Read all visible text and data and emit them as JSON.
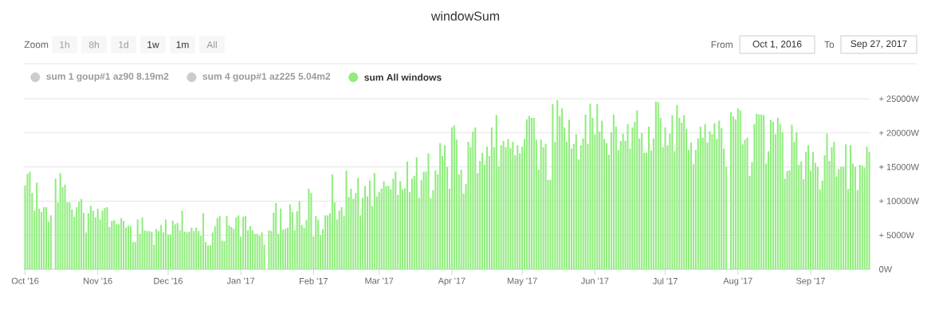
{
  "chart_data": {
    "type": "bar",
    "title": "windowSum",
    "x": [
      "2016-10-01",
      "2016-10-02",
      "2016-10-03",
      "2016-10-04",
      "2016-10-05",
      "2016-10-06",
      "2016-10-07",
      "2016-10-08",
      "2016-10-09",
      "2016-10-10",
      "2016-10-11",
      "2016-10-12",
      "2016-10-13",
      "2016-10-14",
      "2016-10-15",
      "2016-10-16",
      "2016-10-17",
      "2016-10-18",
      "2016-10-19",
      "2016-10-20",
      "2016-10-21",
      "2016-10-22",
      "2016-10-23",
      "2016-10-24",
      "2016-10-25",
      "2016-10-26",
      "2016-10-27",
      "2016-10-28",
      "2016-10-29",
      "2016-10-30",
      "2016-10-31",
      "2016-11-01",
      "2016-11-02",
      "2016-11-03",
      "2016-11-04",
      "2016-11-05",
      "2016-11-06",
      "2016-11-07",
      "2016-11-08",
      "2016-11-09",
      "2016-11-10",
      "2016-11-11",
      "2016-11-12",
      "2016-11-13",
      "2016-11-14",
      "2016-11-15",
      "2016-11-16",
      "2016-11-17",
      "2016-11-18",
      "2016-11-19",
      "2016-11-20",
      "2016-11-21",
      "2016-11-22",
      "2016-11-23",
      "2016-11-24",
      "2016-11-25",
      "2016-11-26",
      "2016-11-27",
      "2016-11-28",
      "2016-11-29",
      "2016-11-30",
      "2016-12-01",
      "2016-12-02",
      "2016-12-03",
      "2016-12-04",
      "2016-12-05",
      "2016-12-06",
      "2016-12-07",
      "2016-12-08",
      "2016-12-09",
      "2016-12-10",
      "2016-12-11",
      "2016-12-12",
      "2016-12-13",
      "2016-12-14",
      "2016-12-15",
      "2016-12-16",
      "2016-12-17",
      "2016-12-18",
      "2016-12-19",
      "2016-12-20",
      "2016-12-21",
      "2016-12-22",
      "2016-12-23",
      "2016-12-24",
      "2016-12-25",
      "2016-12-26",
      "2016-12-27",
      "2016-12-28",
      "2016-12-29",
      "2016-12-30",
      "2016-12-31",
      "2017-01-01",
      "2017-01-02",
      "2017-01-03",
      "2017-01-04",
      "2017-01-05",
      "2017-01-06",
      "2017-01-07",
      "2017-01-08",
      "2017-01-09",
      "2017-01-10",
      "2017-01-11",
      "2017-01-12",
      "2017-01-13",
      "2017-01-14",
      "2017-01-15",
      "2017-01-16",
      "2017-01-17",
      "2017-01-18",
      "2017-01-19",
      "2017-01-20",
      "2017-01-21",
      "2017-01-22",
      "2017-01-23",
      "2017-01-24",
      "2017-01-25",
      "2017-01-26",
      "2017-01-27",
      "2017-01-28",
      "2017-01-29",
      "2017-01-30",
      "2017-01-31",
      "2017-02-01",
      "2017-02-02",
      "2017-02-03",
      "2017-02-04",
      "2017-02-05",
      "2017-02-06",
      "2017-02-07",
      "2017-02-08",
      "2017-02-09",
      "2017-02-10",
      "2017-02-11",
      "2017-02-12",
      "2017-02-13",
      "2017-02-14",
      "2017-02-15",
      "2017-02-16",
      "2017-02-17",
      "2017-02-18",
      "2017-02-19",
      "2017-02-20",
      "2017-02-21",
      "2017-02-22",
      "2017-02-23",
      "2017-02-24",
      "2017-02-25",
      "2017-02-26",
      "2017-02-27",
      "2017-02-28",
      "2017-03-01",
      "2017-03-02",
      "2017-03-03",
      "2017-03-04",
      "2017-03-05",
      "2017-03-06",
      "2017-03-07",
      "2017-03-08",
      "2017-03-09",
      "2017-03-10",
      "2017-03-11",
      "2017-03-12",
      "2017-03-13",
      "2017-03-14",
      "2017-03-15",
      "2017-03-16",
      "2017-03-17",
      "2017-03-18",
      "2017-03-19",
      "2017-03-20",
      "2017-03-21",
      "2017-03-22",
      "2017-03-23",
      "2017-03-24",
      "2017-03-25",
      "2017-03-26",
      "2017-03-27",
      "2017-03-28",
      "2017-03-29",
      "2017-03-30",
      "2017-03-31",
      "2017-04-01",
      "2017-04-02",
      "2017-04-03",
      "2017-04-04",
      "2017-04-05",
      "2017-04-06",
      "2017-04-07",
      "2017-04-08",
      "2017-04-09",
      "2017-04-10",
      "2017-04-11",
      "2017-04-12",
      "2017-04-13",
      "2017-04-14",
      "2017-04-15",
      "2017-04-16",
      "2017-04-17",
      "2017-04-18",
      "2017-04-19",
      "2017-04-20",
      "2017-04-21",
      "2017-04-22",
      "2017-04-23",
      "2017-04-24",
      "2017-04-25",
      "2017-04-26",
      "2017-04-27",
      "2017-04-28",
      "2017-04-29",
      "2017-04-30",
      "2017-05-01",
      "2017-05-02",
      "2017-05-03",
      "2017-05-04",
      "2017-05-05",
      "2017-05-06",
      "2017-05-07",
      "2017-05-08",
      "2017-05-09",
      "2017-05-10",
      "2017-05-11",
      "2017-05-12",
      "2017-05-13",
      "2017-05-14",
      "2017-05-15",
      "2017-05-16",
      "2017-05-17",
      "2017-05-18",
      "2017-05-19",
      "2017-05-20",
      "2017-05-21",
      "2017-05-22",
      "2017-05-23",
      "2017-05-24",
      "2017-05-25",
      "2017-05-26",
      "2017-05-27",
      "2017-05-28",
      "2017-05-29",
      "2017-05-30",
      "2017-05-31",
      "2017-06-01",
      "2017-06-02",
      "2017-06-03",
      "2017-06-04",
      "2017-06-05",
      "2017-06-06",
      "2017-06-07",
      "2017-06-08",
      "2017-06-09",
      "2017-06-10",
      "2017-06-11",
      "2017-06-12",
      "2017-06-13",
      "2017-06-14",
      "2017-06-15",
      "2017-06-16",
      "2017-06-17",
      "2017-06-18",
      "2017-06-19",
      "2017-06-20",
      "2017-06-21",
      "2017-06-22",
      "2017-06-23",
      "2017-06-24",
      "2017-06-25",
      "2017-06-26",
      "2017-06-27",
      "2017-06-28",
      "2017-06-29",
      "2017-06-30",
      "2017-07-01",
      "2017-07-02",
      "2017-07-03",
      "2017-07-04",
      "2017-07-05",
      "2017-07-06",
      "2017-07-07",
      "2017-07-08",
      "2017-07-09",
      "2017-07-10",
      "2017-07-11",
      "2017-07-12",
      "2017-07-13",
      "2017-07-14",
      "2017-07-15",
      "2017-07-16",
      "2017-07-17",
      "2017-07-18",
      "2017-07-19",
      "2017-07-20",
      "2017-07-21",
      "2017-07-22",
      "2017-07-23",
      "2017-07-24",
      "2017-07-25",
      "2017-07-26",
      "2017-07-27",
      "2017-07-28",
      "2017-07-29",
      "2017-07-30",
      "2017-07-31",
      "2017-08-01",
      "2017-08-02",
      "2017-08-03",
      "2017-08-04",
      "2017-08-05",
      "2017-08-06",
      "2017-08-07",
      "2017-08-08",
      "2017-08-09",
      "2017-08-10",
      "2017-08-11",
      "2017-08-12",
      "2017-08-13",
      "2017-08-14",
      "2017-08-15",
      "2017-08-16",
      "2017-08-17",
      "2017-08-18",
      "2017-08-19",
      "2017-08-20",
      "2017-08-21",
      "2017-08-22",
      "2017-08-23",
      "2017-08-24",
      "2017-08-25",
      "2017-08-26",
      "2017-08-27",
      "2017-08-28",
      "2017-08-29",
      "2017-08-30",
      "2017-08-31",
      "2017-09-01",
      "2017-09-02",
      "2017-09-03",
      "2017-09-04",
      "2017-09-05",
      "2017-09-06",
      "2017-09-07",
      "2017-09-08",
      "2017-09-09",
      "2017-09-10",
      "2017-09-11",
      "2017-09-12",
      "2017-09-13",
      "2017-09-14",
      "2017-09-15",
      "2017-09-16",
      "2017-09-17",
      "2017-09-18",
      "2017-09-19",
      "2017-09-20",
      "2017-09-21",
      "2017-09-22",
      "2017-09-23",
      "2017-09-24",
      "2017-09-25",
      "2017-09-26"
    ],
    "series": [
      {
        "name": "sum 1 goup#1 az90 8.19m2",
        "color": "#cccccc",
        "values": [
          null,
          null,
          null,
          null,
          null,
          null,
          null,
          null,
          null,
          null,
          null,
          null,
          null,
          null,
          null,
          null,
          null,
          null,
          null,
          null,
          null,
          null,
          null,
          null,
          null,
          null,
          null,
          null,
          null,
          null,
          null,
          null,
          null,
          null,
          null,
          null,
          null,
          null,
          null,
          null,
          null,
          null,
          null,
          null,
          null,
          null,
          null,
          null,
          null,
          null,
          null,
          null,
          null,
          null,
          null,
          null,
          null,
          null,
          null,
          null,
          null,
          null,
          null,
          null,
          null,
          null,
          null,
          null,
          null,
          null,
          null,
          null,
          null,
          null,
          null,
          null,
          null,
          null,
          null,
          null,
          null,
          null,
          null,
          null,
          null,
          null,
          null,
          null,
          null,
          null,
          null,
          null,
          null,
          null,
          null,
          null,
          null,
          null,
          null,
          null,
          null,
          null,
          null,
          null,
          null,
          null,
          null,
          null,
          null,
          null,
          null,
          null,
          null,
          null,
          null,
          null,
          null,
          null,
          null,
          null,
          null,
          null,
          null,
          null,
          null,
          null,
          null,
          null,
          null,
          null,
          null,
          null,
          null,
          null,
          null,
          null,
          null,
          null,
          null,
          null,
          null,
          null,
          null,
          null,
          null,
          null,
          null,
          null,
          null,
          null,
          null,
          null,
          null,
          null,
          null,
          null,
          null,
          null,
          null,
          null,
          null,
          null,
          null,
          null,
          null,
          null,
          null,
          null,
          null,
          null,
          null,
          null,
          null,
          null,
          null,
          null,
          null,
          null,
          null,
          null,
          null,
          null,
          null,
          null,
          null,
          null,
          null,
          null,
          null,
          null,
          null,
          null,
          null,
          null,
          null,
          null,
          null,
          null,
          null,
          null,
          null,
          null,
          null,
          null,
          null,
          null,
          null,
          null,
          null,
          null,
          null,
          null,
          null,
          null,
          null,
          null,
          null,
          null,
          null,
          null,
          null,
          null,
          null,
          null,
          null,
          null,
          null,
          null,
          null,
          null,
          null,
          null,
          null,
          null,
          null,
          null,
          null,
          null,
          null,
          null,
          null,
          null,
          null,
          null,
          null,
          null,
          null,
          null,
          null,
          null,
          null,
          null,
          null,
          null,
          null,
          null,
          null,
          null,
          null,
          null,
          null,
          null,
          null,
          null,
          null,
          null,
          null,
          null,
          null,
          null,
          null,
          null,
          null,
          null,
          null,
          null,
          null,
          null,
          null,
          null,
          null,
          null,
          null,
          null,
          null,
          null,
          null,
          null,
          null,
          null,
          null,
          null,
          null,
          null,
          null,
          null,
          null,
          null,
          null,
          null,
          null,
          null,
          null,
          null,
          null,
          null,
          null,
          null,
          null,
          null,
          null,
          null,
          null,
          null,
          null,
          null,
          null,
          null,
          null,
          null,
          null,
          null,
          null,
          null,
          null,
          null,
          null,
          null,
          null,
          null,
          null,
          null,
          null,
          null,
          null,
          null,
          null,
          null,
          null,
          null,
          null,
          null,
          null,
          null,
          null,
          null,
          null,
          null,
          null,
          null,
          null,
          null,
          null,
          null,
          null,
          null,
          null,
          null,
          null,
          null,
          null
        ]
      },
      {
        "name": "sum 4 goup#1 az225 5.04m2",
        "color": "#cccccc",
        "values": [
          null,
          null,
          null,
          null,
          null,
          null,
          null,
          null,
          null,
          null,
          null,
          null,
          null,
          null,
          null,
          null,
          null,
          null,
          null,
          null,
          null,
          null,
          null,
          null,
          null,
          null,
          null,
          null,
          null,
          null,
          null,
          null,
          null,
          null,
          null,
          null,
          null,
          null,
          null,
          null,
          null,
          null,
          null,
          null,
          null,
          null,
          null,
          null,
          null,
          null,
          null,
          null,
          null,
          null,
          null,
          null,
          null,
          null,
          null,
          null,
          null,
          null,
          null,
          null,
          null,
          null,
          null,
          null,
          null,
          null,
          null,
          null,
          null,
          null,
          null,
          null,
          null,
          null,
          null,
          null,
          null,
          null,
          null,
          null,
          null,
          null,
          null,
          null,
          null,
          null,
          null,
          null,
          null,
          null,
          null,
          null,
          null,
          null,
          null,
          null,
          null,
          null,
          null,
          null,
          null,
          null,
          null,
          null,
          null,
          null,
          null,
          null,
          null,
          null,
          null,
          null,
          null,
          null,
          null,
          null,
          null,
          null,
          null,
          null,
          null,
          null,
          null,
          null,
          null,
          null,
          null,
          null,
          null,
          null,
          null,
          null,
          null,
          null,
          null,
          null,
          null,
          null,
          null,
          null,
          null,
          null,
          null,
          null,
          null,
          null,
          null,
          null,
          null,
          null,
          null,
          null,
          null,
          null,
          null,
          null,
          null,
          null,
          null,
          null,
          null,
          null,
          null,
          null,
          null,
          null,
          null,
          null,
          null,
          null,
          null,
          null,
          null,
          null,
          null,
          null,
          null,
          null,
          null,
          null,
          null,
          null,
          null,
          null,
          null,
          null,
          null,
          null,
          null,
          null,
          null,
          null,
          null,
          null,
          null,
          null,
          null,
          null,
          null,
          null,
          null,
          null,
          null,
          null,
          null,
          null,
          null,
          null,
          null,
          null,
          null,
          null,
          null,
          null,
          null,
          null,
          null,
          null,
          null,
          null,
          null,
          null,
          null,
          null,
          null,
          null,
          null,
          null,
          null,
          null,
          null,
          null,
          null,
          null,
          null,
          null,
          null,
          null,
          null,
          null,
          null,
          null,
          null,
          null,
          null,
          null,
          null,
          null,
          null,
          null,
          null,
          null,
          null,
          null,
          null,
          null,
          null,
          null,
          null,
          null,
          null,
          null,
          null,
          null,
          null,
          null,
          null,
          null,
          null,
          null,
          null,
          null,
          null,
          null,
          null,
          null,
          null,
          null,
          null,
          null,
          null,
          null,
          null,
          null,
          null,
          null,
          null,
          null,
          null,
          null,
          null,
          null,
          null,
          null,
          null,
          null,
          null,
          null,
          null,
          null,
          null,
          null,
          null,
          null,
          null,
          null,
          null,
          null,
          null,
          null,
          null,
          null,
          null,
          null,
          null,
          null,
          null,
          null,
          null,
          null,
          null,
          null,
          null,
          null,
          null,
          null,
          null,
          null,
          null,
          null,
          null,
          null,
          null,
          null,
          null,
          null,
          null,
          null,
          null,
          null,
          null,
          null,
          null,
          null,
          null,
          null,
          null,
          null,
          null,
          null,
          null,
          null,
          null,
          null,
          null,
          null,
          null
        ]
      },
      {
        "name": "sum All windows",
        "color": "#90ed7d",
        "values": [
          12300,
          14000,
          14300,
          11200,
          8600,
          12700,
          8900,
          8400,
          9100,
          9100,
          7000,
          7900,
          null,
          13300,
          9800,
          14100,
          12000,
          12400,
          9800,
          9800,
          8800,
          7700,
          9100,
          9900,
          10300,
          8300,
          5400,
          8200,
          9300,
          8600,
          7600,
          8900,
          7300,
          8600,
          9000,
          9100,
          6200,
          7100,
          7200,
          6600,
          6600,
          7500,
          7100,
          6100,
          6400,
          6300,
          4000,
          4000,
          7300,
          5200,
          7600,
          5700,
          5600,
          5600,
          5500,
          3600,
          5900,
          5600,
          6500,
          5400,
          7300,
          5100,
          5100,
          7100,
          6600,
          6800,
          5700,
          8600,
          5500,
          5400,
          5500,
          6100,
          5600,
          6100,
          5600,
          4900,
          8200,
          4000,
          3500,
          3500,
          5400,
          6300,
          7500,
          7800,
          4200,
          4100,
          7800,
          6400,
          6200,
          5900,
          7600,
          7900,
          4800,
          7700,
          7800,
          5700,
          6300,
          5700,
          5200,
          5200,
          4900,
          5400,
          3600,
          null,
          5700,
          5600,
          8300,
          9700,
          5200,
          8900,
          5800,
          5900,
          6100,
          9500,
          8400,
          5700,
          8500,
          10000,
          6500,
          6100,
          7200,
          11800,
          11200,
          4800,
          7800,
          7300,
          5000,
          5900,
          7900,
          7900,
          8200,
          13900,
          9800,
          7300,
          8600,
          9100,
          7800,
          14500,
          10600,
          11800,
          10300,
          11200,
          13400,
          7900,
          10500,
          12200,
          10700,
          13000,
          9300,
          14100,
          10700,
          11300,
          11800,
          12900,
          12200,
          12200,
          11700,
          13300,
          14300,
          10900,
          12900,
          11700,
          11900,
          15800,
          11300,
          13300,
          13700,
          16400,
          10500,
          13100,
          14300,
          14300,
          17000,
          10400,
          11600,
          14500,
          13900,
          18500,
          16600,
          18200,
          15000,
          11800,
          20800,
          21100,
          19000,
          13900,
          14600,
          11100,
          12500,
          18700,
          17900,
          20200,
          20800,
          14100,
          15900,
          17100,
          15300,
          18000,
          16600,
          20800,
          17900,
          22600,
          15100,
          18200,
          18800,
          17900,
          19100,
          17800,
          18700,
          16700,
          18200,
          17000,
          18000,
          19100,
          22000,
          22500,
          22200,
          22200,
          19000,
          14600,
          19000,
          17900,
          18400,
          13100,
          13100,
          24200,
          18700,
          24800,
          22500,
          23600,
          20800,
          18700,
          21900,
          17700,
          18400,
          19800,
          16100,
          18200,
          19200,
          22700,
          18400,
          24300,
          22200,
          19800,
          24200,
          20200,
          21800,
          19100,
          18500,
          16800,
          20100,
          22700,
          20900,
          17500,
          18800,
          19900,
          18800,
          21300,
          17700,
          20800,
          21600,
          23300,
          19200,
          20000,
          17100,
          17100,
          20900,
          17400,
          19200,
          24600,
          24500,
          22200,
          17900,
          20800,
          18200,
          19900,
          22600,
          17300,
          24100,
          22200,
          21500,
          22600,
          20600,
          17500,
          18600,
          15400,
          17500,
          19200,
          20900,
          19300,
          21300,
          18600,
          20200,
          19800,
          21400,
          19100,
          21800,
          20700,
          17700,
          15000,
          null,
          23000,
          22400,
          22000,
          23600,
          23300,
          18300,
          19000,
          19300,
          13700,
          15700,
          21300,
          22800,
          22700,
          22700,
          22600,
          15500,
          17300,
          21900,
          21600,
          19800,
          22200,
          21300,
          20100,
          13300,
          14400,
          14500,
          21200,
          18700,
          20100,
          15300,
          15800,
          13200,
          17200,
          18200,
          14500,
          17200,
          15600,
          15000,
          11700,
          13000,
          16700,
          19900,
          15900,
          17900,
          18700,
          13600,
          14700,
          15000,
          15000,
          18300,
          11800,
          18200,
          15500,
          15000,
          11600,
          15300,
          15200,
          14900,
          18000,
          17200
        ]
      }
    ],
    "xlim": [
      "2016-09-30T12:00",
      "2017-09-26T12:00"
    ],
    "xticks": [
      {
        "value": "2016-10-01",
        "label": "Oct '16"
      },
      {
        "value": "2016-11-01",
        "label": "Nov '16"
      },
      {
        "value": "2016-12-01",
        "label": "Dec '16"
      },
      {
        "value": "2017-01-01",
        "label": "Jan '17"
      },
      {
        "value": "2017-02-01",
        "label": "Feb '17"
      },
      {
        "value": "2017-03-01",
        "label": "Mar '17"
      },
      {
        "value": "2017-04-01",
        "label": "Apr '17"
      },
      {
        "value": "2017-05-01",
        "label": "May '17"
      },
      {
        "value": "2017-06-01",
        "label": "Jun '17"
      },
      {
        "value": "2017-07-01",
        "label": "Jul '17"
      },
      {
        "value": "2017-08-01",
        "label": "Aug '17"
      },
      {
        "value": "2017-09-01",
        "label": "Sep '17"
      }
    ],
    "ylim": [
      0,
      25000
    ],
    "yticks": [
      {
        "value": 0,
        "label": "0W"
      },
      {
        "value": 5000,
        "label": "+ 5000W"
      },
      {
        "value": 10000,
        "label": "+ 10000W"
      },
      {
        "value": 15000,
        "label": "+ 15000W"
      },
      {
        "value": 20000,
        "label": "+ 20000W"
      },
      {
        "value": 25000,
        "label": "+ 25000W"
      }
    ],
    "grid": "y",
    "legend": "top left",
    "annotations": [
      "Zoom",
      "1h",
      "8h",
      "1d",
      "1w",
      "1m",
      "All",
      "From",
      "Oct 1, 2016",
      "To",
      "Sep 27, 2017"
    ]
  }
}
